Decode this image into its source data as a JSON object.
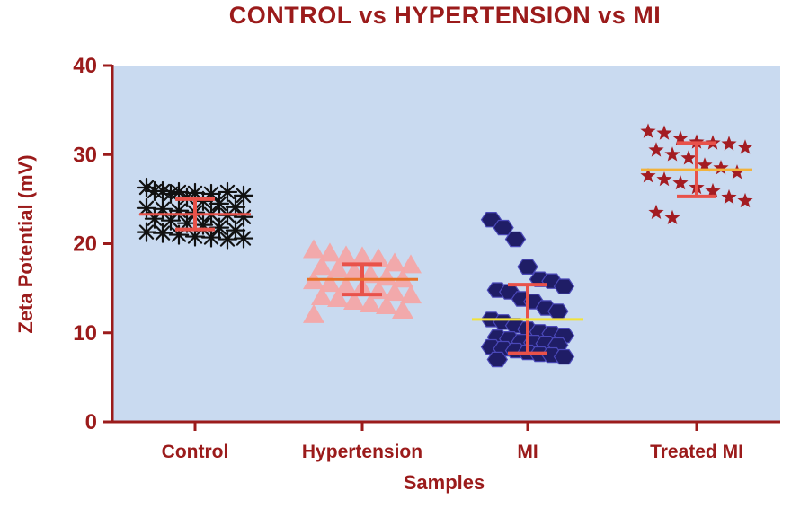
{
  "chart_data": {
    "type": "scatter",
    "title": "CONTROL vs HYPERTENSION vs MI",
    "xlabel": "Samples",
    "ylabel": "Zeta Potential (mV)",
    "ylim": [
      0,
      40
    ],
    "yticks": [
      0,
      10,
      20,
      30,
      40
    ],
    "grid": false,
    "categories": [
      "Control",
      "Hypertension",
      "MI",
      "Treated MI"
    ],
    "colors": {
      "plot_background": "#c9daf0",
      "axis": "#9b1b1b",
      "text": "#9b1b1b",
      "control_marker": "#111111",
      "hypertension_marker": "#f4a6a6",
      "mi_marker": "#1f1d66",
      "treated_marker": "#a31c22"
    },
    "series": [
      {
        "category": "Control",
        "marker": "asterisk-icon",
        "color": "#111111",
        "mean": 23.3,
        "mean_color": "#e8524a",
        "error_range": [
          21.6,
          25.0
        ],
        "values": [
          26.3,
          25.9,
          25.8,
          25.7,
          25.6,
          25.8,
          25.4,
          25.9,
          25.6,
          25.2,
          24.8,
          24.5,
          24.1,
          24.0,
          23.9,
          23.7,
          23.5,
          23.3,
          23.2,
          23.0,
          22.8,
          22.6,
          22.3,
          22.1,
          21.8,
          21.5,
          21.3,
          21.2,
          21.0,
          20.8,
          20.7,
          20.5,
          20.6
        ]
      },
      {
        "category": "Hypertension",
        "marker": "triangle-icon",
        "color": "#f4a6a6",
        "mean": 16.0,
        "mean_color": "#e8732a",
        "error_range": [
          14.3,
          17.7
        ],
        "values": [
          19.3,
          18.9,
          18.6,
          18.5,
          18.3,
          17.8,
          17.6,
          17.4,
          17.1,
          16.8,
          16.5,
          16.2,
          16.0,
          15.8,
          15.5,
          15.2,
          15.0,
          14.7,
          14.5,
          14.2,
          14.0,
          13.8,
          13.5,
          13.2,
          13.0,
          12.5,
          12.0
        ]
      },
      {
        "category": "MI",
        "marker": "hexagon-icon",
        "color": "#1f1d66",
        "mean": 11.5,
        "mean_color": "#f2e23a",
        "error_range": [
          7.7,
          15.4
        ],
        "values": [
          22.7,
          21.8,
          20.5,
          17.4,
          16.0,
          15.8,
          15.2,
          14.8,
          14.6,
          13.8,
          13.5,
          12.8,
          12.4,
          11.5,
          11.2,
          10.8,
          10.4,
          10.1,
          9.9,
          9.7,
          9.5,
          9.3,
          9.0,
          8.9,
          8.8,
          8.6,
          8.4,
          8.2,
          8.0,
          7.8,
          7.6,
          7.5,
          7.3,
          7.0
        ]
      },
      {
        "category": "Treated MI",
        "marker": "star-icon",
        "color": "#a31c22",
        "mean": 28.3,
        "mean_color": "#f2b23a",
        "error_range": [
          25.3,
          31.3
        ],
        "values": [
          32.6,
          32.4,
          31.8,
          31.4,
          31.3,
          31.2,
          30.8,
          30.5,
          30.0,
          29.6,
          28.8,
          28.5,
          28.0,
          27.6,
          27.2,
          26.8,
          26.3,
          25.9,
          25.2,
          24.8,
          23.5,
          22.9
        ]
      }
    ]
  }
}
